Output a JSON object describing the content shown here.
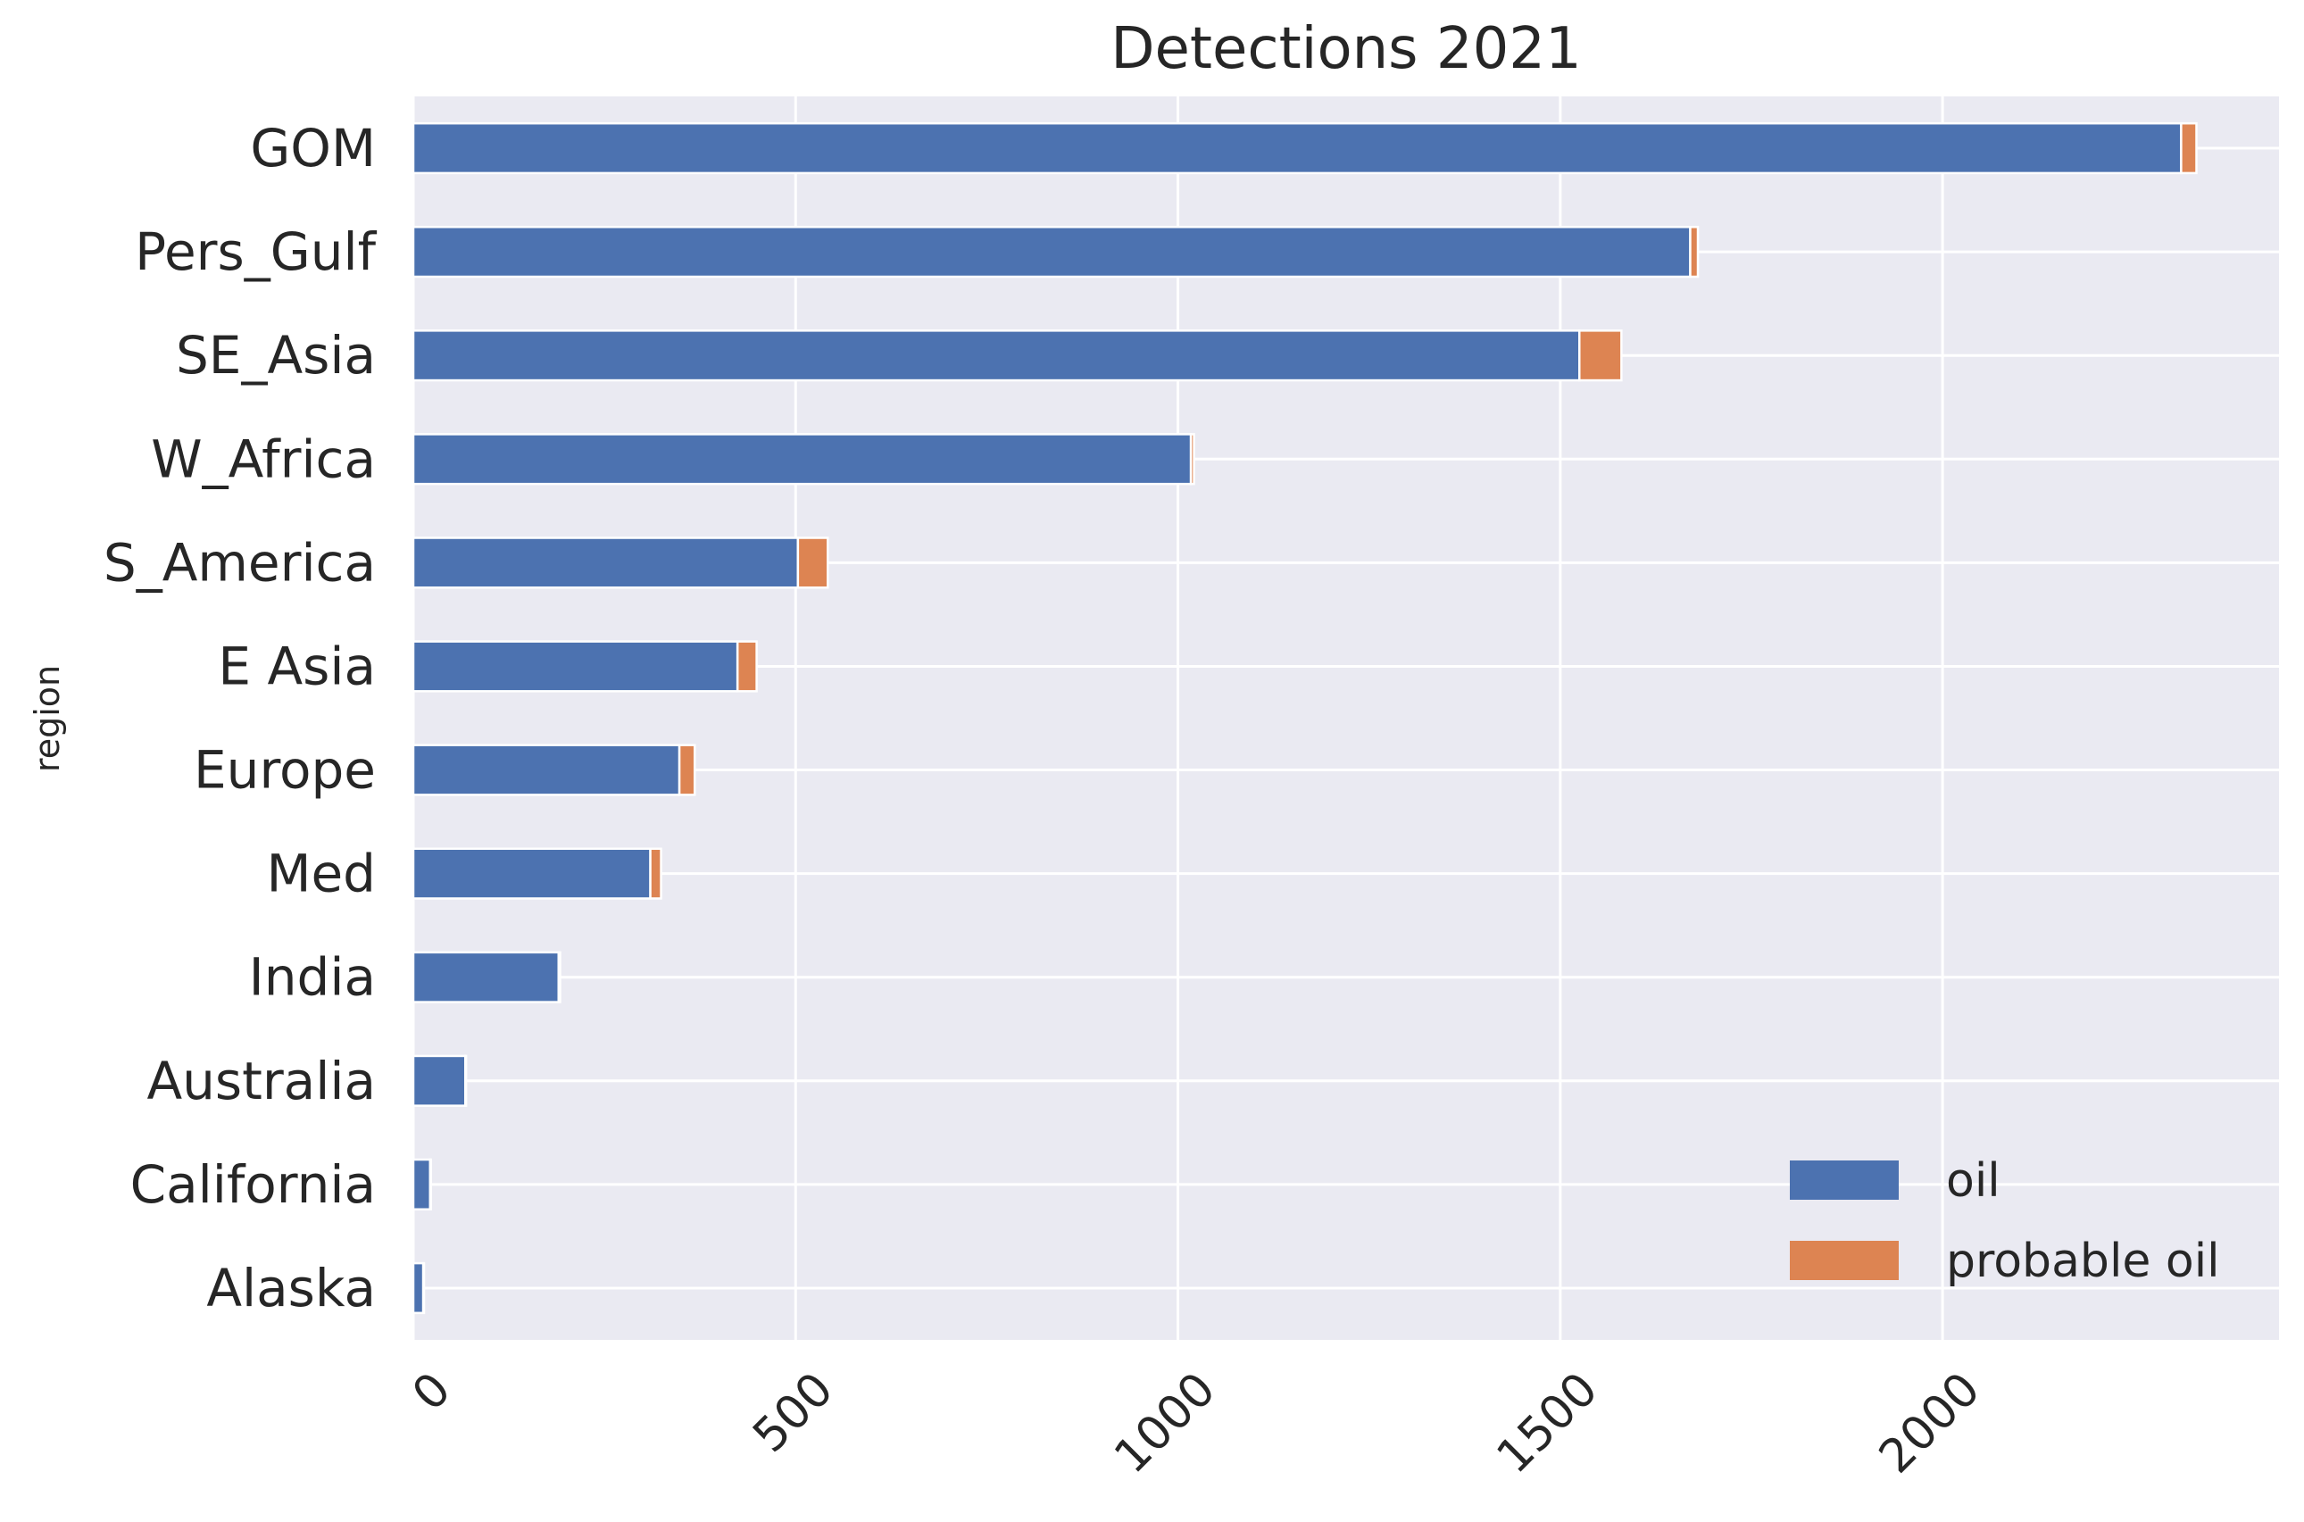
{
  "chart_data": {
    "type": "bar",
    "orientation": "horizontal",
    "stacked": true,
    "title": "Detections 2021",
    "xlabel": "",
    "ylabel": "region",
    "categories": [
      "GOM",
      "Pers_Gulf",
      "SE_Asia",
      "W_Africa",
      "S_America",
      "E Asia",
      "Europe",
      "Med",
      "India",
      "Australia",
      "California",
      "Alaska"
    ],
    "series": [
      {
        "name": "oil",
        "color": "#4c72b0",
        "values": [
          2312,
          1670,
          1525,
          1017,
          503,
          424,
          348,
          310,
          190,
          68,
          22,
          13
        ]
      },
      {
        "name": "probable oil",
        "color": "#dd8452",
        "values": [
          20,
          10,
          55,
          4,
          39,
          25,
          20,
          14,
          2,
          1,
          1,
          1
        ]
      }
    ],
    "xlim": [
      0,
      2440
    ],
    "xticks": [
      0,
      500,
      1000,
      1500,
      2000
    ],
    "grid": true,
    "legend_position": "lower-right"
  }
}
